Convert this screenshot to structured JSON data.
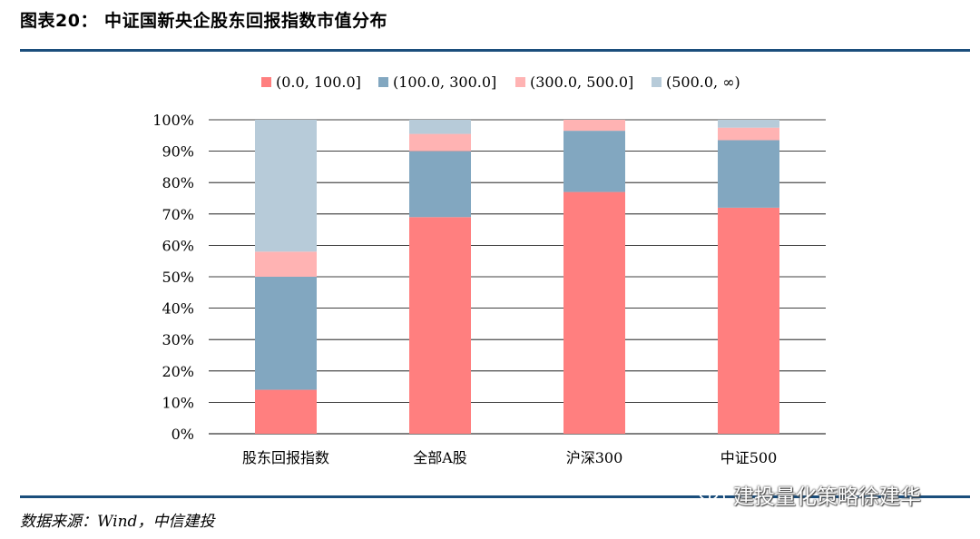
{
  "header": {
    "title": "图表20：  中证国新央企股东回报指数市值分布"
  },
  "footer": {
    "source": "数据来源：Wind，中信建投",
    "watermark": "建投量化策略徐建华"
  },
  "colors": {
    "rule": "#1b4e7c"
  },
  "chart_data": {
    "type": "bar",
    "stacked": true,
    "percent": true,
    "categories": [
      "股东回报指数",
      "全部A股",
      "沪深300",
      "中证500"
    ],
    "series": [
      {
        "name": "(0.0, 100.0]",
        "color": "#ff7f7f",
        "values": [
          14,
          69,
          77,
          72
        ]
      },
      {
        "name": "(100.0, 300.0]",
        "color": "#82a7c0",
        "values": [
          36,
          21,
          19.5,
          21.5
        ]
      },
      {
        "name": "(300.0, 500.0]",
        "color": "#ffb3b3",
        "values": [
          8,
          5.5,
          3.5,
          4
        ]
      },
      {
        "name": "(500.0, ∞)",
        "color": "#b7cbd9",
        "values": [
          42,
          4.5,
          0,
          2.5
        ]
      }
    ],
    "yticks": [
      "0%",
      "10%",
      "20%",
      "30%",
      "40%",
      "50%",
      "60%",
      "70%",
      "80%",
      "90%",
      "100%"
    ],
    "ylim": [
      0,
      100
    ],
    "grid": true,
    "legend_position": "top"
  }
}
